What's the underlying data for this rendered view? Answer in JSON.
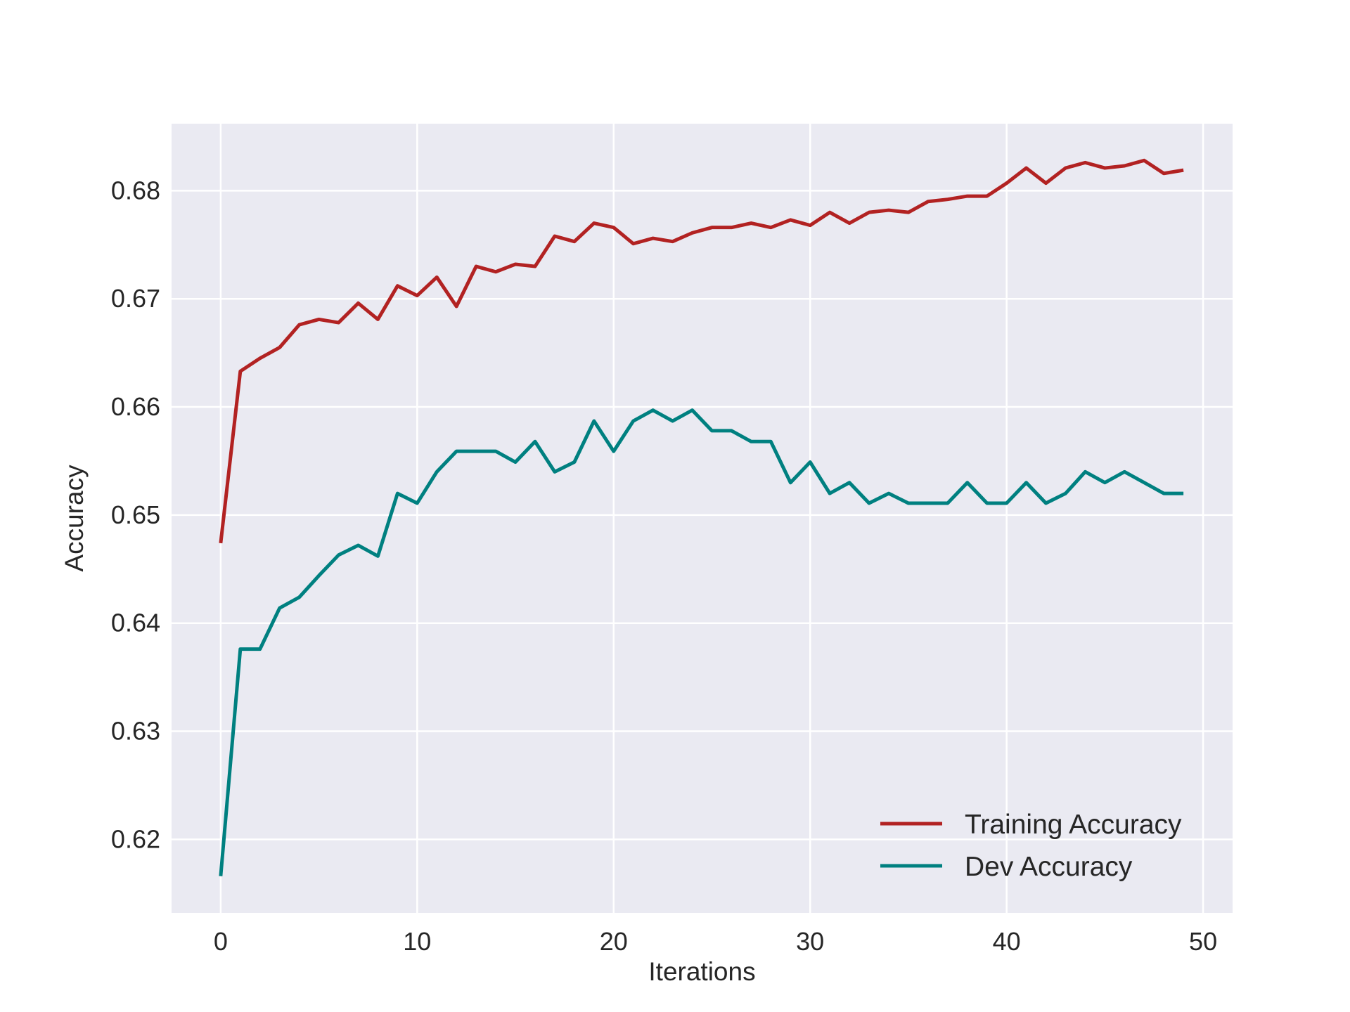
{
  "chart_data": {
    "type": "line",
    "title": "",
    "xlabel": "Iterations",
    "ylabel": "Accuracy",
    "xlim": [
      -2.5,
      51.5
    ],
    "ylim": [
      0.6132,
      0.6862
    ],
    "xticks": [
      0,
      10,
      20,
      30,
      40,
      50
    ],
    "yticks": [
      0.62,
      0.63,
      0.64,
      0.65,
      0.66,
      0.67,
      0.68
    ],
    "xtick_labels": [
      "0",
      "10",
      "20",
      "30",
      "40",
      "50"
    ],
    "ytick_labels": [
      "0.62",
      "0.63",
      "0.64",
      "0.65",
      "0.66",
      "0.67",
      "0.68"
    ],
    "grid": true,
    "legend_position": "lower-right",
    "background_color": "#eaeaf2",
    "grid_color": "#ffffff",
    "x": [
      0,
      1,
      2,
      3,
      4,
      5,
      6,
      7,
      8,
      9,
      10,
      11,
      12,
      13,
      14,
      15,
      16,
      17,
      18,
      19,
      20,
      21,
      22,
      23,
      24,
      25,
      26,
      27,
      28,
      29,
      30,
      31,
      32,
      33,
      34,
      35,
      36,
      37,
      38,
      39,
      40,
      41,
      42,
      43,
      44,
      45,
      46,
      47,
      48,
      49
    ],
    "series": [
      {
        "name": "Training Accuracy",
        "color": "#b22222",
        "values": [
          0.6474,
          0.6633,
          0.6645,
          0.6655,
          0.6676,
          0.6681,
          0.6678,
          0.6696,
          0.6681,
          0.6712,
          0.6703,
          0.672,
          0.6693,
          0.673,
          0.6725,
          0.6732,
          0.673,
          0.6758,
          0.6753,
          0.677,
          0.6766,
          0.6751,
          0.6756,
          0.6753,
          0.6761,
          0.6766,
          0.6766,
          0.677,
          0.6766,
          0.6773,
          0.6768,
          0.678,
          0.677,
          0.678,
          0.6782,
          0.678,
          0.679,
          0.6792,
          0.6795,
          0.6795,
          0.6807,
          0.6821,
          0.6807,
          0.6821,
          0.6826,
          0.6821,
          0.6823,
          0.6828,
          0.6816,
          0.6819
        ]
      },
      {
        "name": "Dev Accuracy",
        "color": "#008080",
        "values": [
          0.6166,
          0.6376,
          0.6376,
          0.6414,
          0.6424,
          0.6444,
          0.6463,
          0.6472,
          0.6462,
          0.652,
          0.6511,
          0.654,
          0.6559,
          0.6559,
          0.6559,
          0.6549,
          0.6568,
          0.654,
          0.6549,
          0.6587,
          0.6559,
          0.6587,
          0.6597,
          0.6587,
          0.6597,
          0.6578,
          0.6578,
          0.6568,
          0.6568,
          0.653,
          0.6549,
          0.652,
          0.653,
          0.6511,
          0.652,
          0.6511,
          0.6511,
          0.6511,
          0.653,
          0.6511,
          0.6511,
          0.653,
          0.6511,
          0.652,
          0.654,
          0.653,
          0.654,
          0.653,
          0.652,
          0.652
        ]
      }
    ]
  }
}
